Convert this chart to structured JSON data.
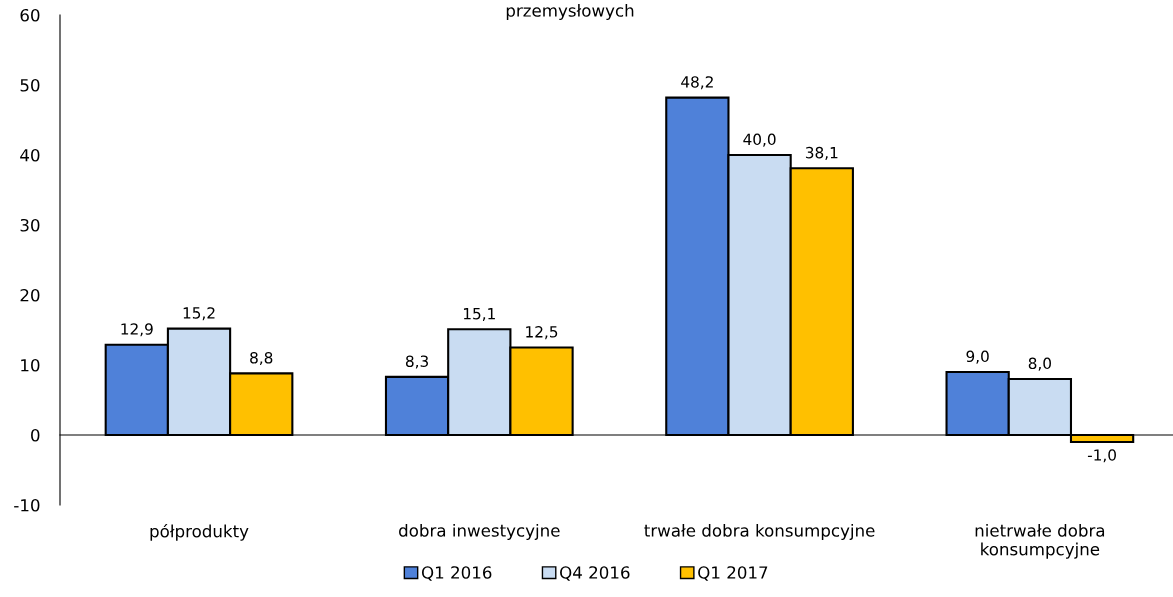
{
  "chart_data": {
    "type": "bar",
    "title": "przemysłowych",
    "categories": [
      "półprodukty",
      "dobra inwestycyjne",
      "trwałe dobra konsumpcyjne",
      "nietrwałe dobra\nkonsumpcyjne"
    ],
    "series": [
      {
        "name": "Q1 2016",
        "color": "#4f81d9",
        "values": [
          12.9,
          8.3,
          48.2,
          9.0
        ],
        "value_labels": [
          "12,9",
          "8,3",
          "48,2",
          "9,0"
        ]
      },
      {
        "name": "Q4 2016",
        "color": "#c9dcf2",
        "values": [
          15.2,
          15.1,
          40.0,
          8.0
        ],
        "value_labels": [
          "15,2",
          "15,1",
          "40,0",
          "8,0"
        ]
      },
      {
        "name": "Q1 2017",
        "color": "#ffc000",
        "values": [
          8.8,
          12.5,
          38.1,
          -1.0
        ],
        "value_labels": [
          "8,8",
          "12,5",
          "38,1",
          "-1,0"
        ]
      }
    ],
    "ylim": [
      -10,
      60
    ],
    "yticks": [
      -10,
      0,
      10,
      20,
      30,
      40,
      50,
      60
    ],
    "legend": "bottom"
  }
}
